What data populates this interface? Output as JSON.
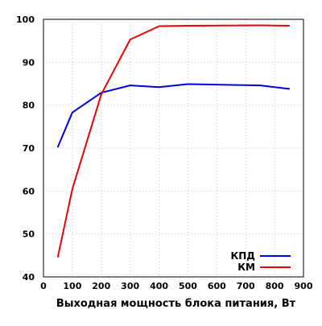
{
  "chart_data": {
    "type": "line",
    "title": "",
    "xlabel": "Выходная мощность блока питания, Вт",
    "ylabel": "",
    "xlim": [
      0,
      900
    ],
    "ylim": [
      40,
      100
    ],
    "x_ticks": [
      0,
      100,
      200,
      300,
      400,
      500,
      600,
      700,
      800,
      900
    ],
    "y_ticks": [
      40,
      50,
      60,
      70,
      80,
      90,
      100
    ],
    "grid": true,
    "legend_position": "bottom-right",
    "series": [
      {
        "name": "КПД",
        "color": "#0000dd",
        "x": [
          50,
          100,
          200,
          300,
          400,
          500,
          750,
          850
        ],
        "y": [
          70.3,
          78.3,
          82.9,
          84.6,
          84.2,
          84.9,
          84.6,
          83.8
        ]
      },
      {
        "name": "КМ",
        "color": "#ee0000",
        "x": [
          50,
          100,
          200,
          300,
          400,
          500,
          750,
          850
        ],
        "y": [
          44.7,
          60.5,
          82.5,
          95.3,
          98.4,
          98.5,
          98.6,
          98.5
        ]
      }
    ]
  }
}
